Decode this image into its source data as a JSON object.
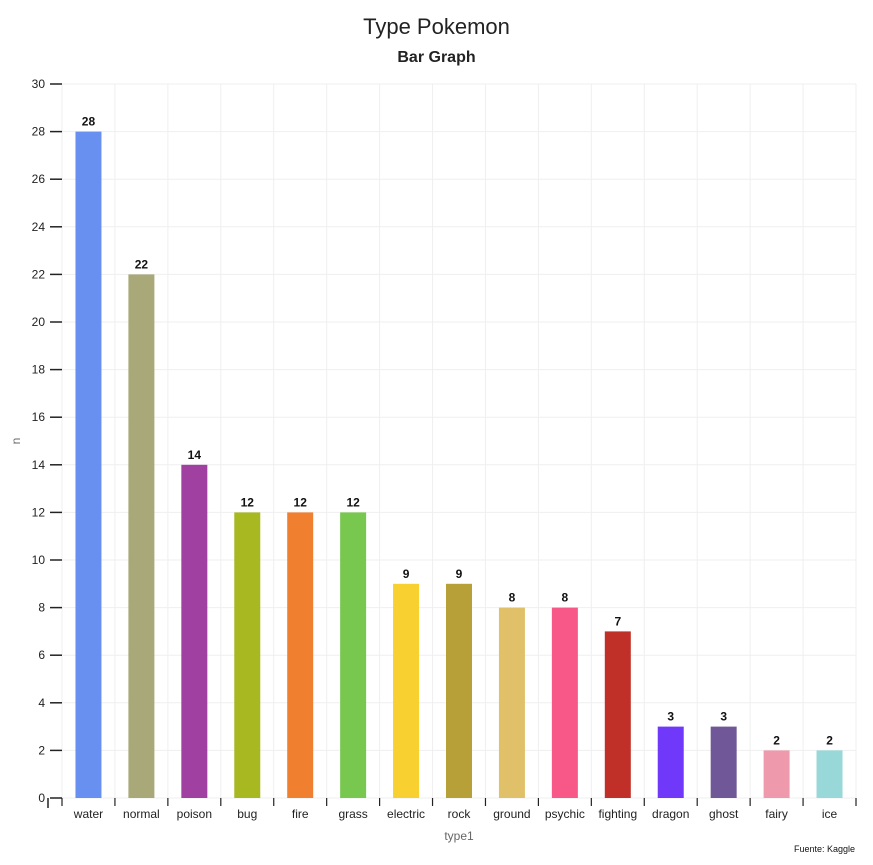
{
  "chart_data": {
    "type": "bar",
    "title": "Type Pokemon",
    "subtitle": "Bar Graph",
    "xlabel": "type1",
    "ylabel": "n",
    "ylim": [
      0,
      30
    ],
    "yticks": [
      0,
      2,
      4,
      6,
      8,
      10,
      12,
      14,
      16,
      18,
      20,
      22,
      24,
      26,
      28,
      30
    ],
    "grid": true,
    "legend": "none",
    "categories": [
      "water",
      "normal",
      "poison",
      "bug",
      "fire",
      "grass",
      "electric",
      "rock",
      "ground",
      "psychic",
      "fighting",
      "dragon",
      "ghost",
      "fairy",
      "ice"
    ],
    "values": [
      28,
      22,
      14,
      12,
      12,
      12,
      9,
      9,
      8,
      8,
      7,
      3,
      3,
      2,
      2
    ],
    "colors": [
      "#6890F0",
      "#A8A878",
      "#A040A0",
      "#A8B820",
      "#F08030",
      "#78C850",
      "#F8D030",
      "#B8A038",
      "#E0C068",
      "#F85888",
      "#C03028",
      "#7038F8",
      "#705898",
      "#EE99AC",
      "#98D8D8"
    ],
    "source": "Fuente: Kaggle"
  }
}
